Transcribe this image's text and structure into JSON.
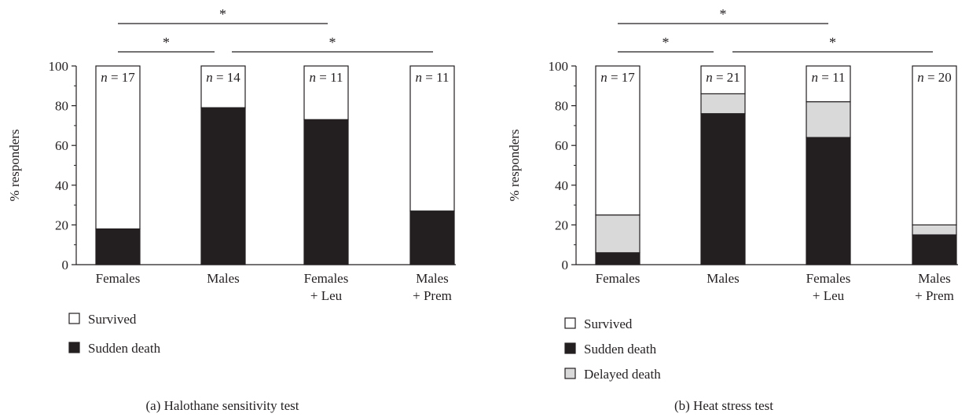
{
  "chart_data": [
    {
      "type": "bar",
      "stacked": true,
      "title": "(a) Halothane sensitivity test",
      "ylabel": "% responders",
      "ylim": [
        0,
        100
      ],
      "yticks": [
        "0",
        "20",
        "40",
        "60",
        "80",
        "100"
      ],
      "categories": [
        [
          "Females"
        ],
        [
          "Males"
        ],
        [
          "Females",
          "+ Leu"
        ],
        [
          "Males",
          "+ Prem"
        ]
      ],
      "n_labels": [
        "17",
        "14",
        "11",
        "11"
      ],
      "series": [
        {
          "name": "Sudden death",
          "color": "#231f20",
          "values": [
            18,
            79,
            73,
            27
          ]
        },
        {
          "name": "Survived",
          "color": "#ffffff",
          "values": [
            82,
            21,
            27,
            73
          ]
        }
      ],
      "legend": [
        {
          "label": "Survived",
          "color": "#ffffff"
        },
        {
          "label": "Sudden death",
          "color": "#231f20"
        }
      ],
      "significance": [
        {
          "from": 0,
          "to": 2,
          "label": "*"
        },
        {
          "from": 0,
          "to": 1,
          "label": "*"
        },
        {
          "from": 1,
          "to": 3,
          "label": "*"
        }
      ]
    },
    {
      "type": "bar",
      "stacked": true,
      "title": "(b) Heat stress test",
      "ylabel": "% responders",
      "ylim": [
        0,
        100
      ],
      "yticks": [
        "0",
        "20",
        "40",
        "60",
        "80",
        "100"
      ],
      "categories": [
        [
          "Females"
        ],
        [
          "Males"
        ],
        [
          "Females",
          "+ Leu"
        ],
        [
          "Males",
          "+ Prem"
        ]
      ],
      "n_labels": [
        "17",
        "21",
        "11",
        "20"
      ],
      "series": [
        {
          "name": "Sudden death",
          "color": "#231f20",
          "values": [
            6,
            76,
            64,
            15
          ]
        },
        {
          "name": "Delayed death",
          "color": "#d9d9da",
          "values": [
            19,
            10,
            18,
            5
          ]
        },
        {
          "name": "Survived",
          "color": "#ffffff",
          "values": [
            75,
            14,
            18,
            80
          ]
        }
      ],
      "legend": [
        {
          "label": "Survived",
          "color": "#ffffff"
        },
        {
          "label": "Sudden death",
          "color": "#231f20"
        },
        {
          "label": "Delayed death",
          "color": "#d9d9da"
        }
      ],
      "significance": [
        {
          "from": 0,
          "to": 2,
          "label": "*"
        },
        {
          "from": 0,
          "to": 1,
          "label": "*"
        },
        {
          "from": 1,
          "to": 3,
          "label": "*"
        }
      ]
    }
  ]
}
